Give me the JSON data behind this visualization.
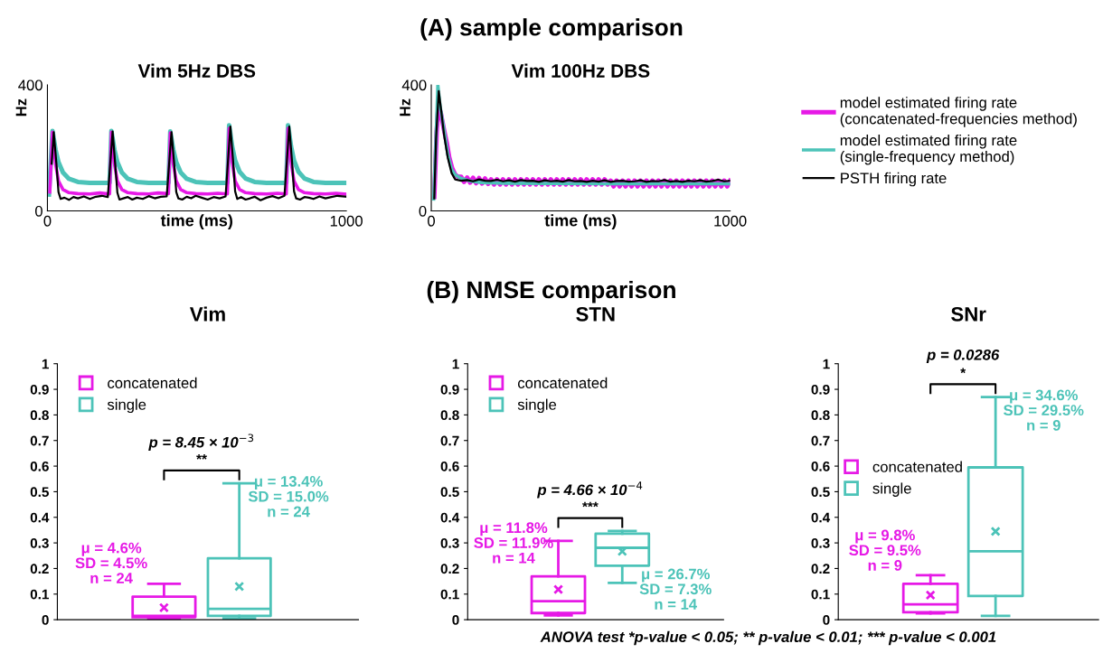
{
  "chart_data": [
    {
      "type": "line",
      "title": "Vim 5Hz DBS",
      "xlabel": "time (ms)",
      "ylabel": "Hz",
      "xlim": [
        0,
        1000
      ],
      "ylim": [
        0,
        400
      ],
      "xticks": [
        0,
        1000
      ],
      "yticks": [
        0,
        400
      ],
      "grid": false,
      "legend": false,
      "annotations": [
        "(A) sample comparison"
      ],
      "series": [
        {
          "color": "#4cc3b8",
          "x": [
            5,
            17,
            27,
            37,
            52,
            72,
            102,
            142,
            208,
            214,
            224,
            234,
            249,
            269,
            299,
            339,
            405,
            411,
            421,
            431,
            446,
            466,
            496,
            536,
            602,
            608,
            618,
            628,
            643,
            663,
            693,
            733,
            799,
            805,
            815,
            825,
            840,
            860,
            890,
            930,
            1000
          ],
          "values": [
            52,
            254,
            195,
            155,
            122,
            102,
            92,
            89,
            89,
            254,
            195,
            155,
            122,
            102,
            92,
            89,
            89,
            252,
            195,
            155,
            122,
            102,
            92,
            89,
            89,
            272,
            205,
            160,
            124,
            103,
            92,
            89,
            89,
            272,
            205,
            160,
            124,
            103,
            92,
            89,
            89
          ]
        },
        {
          "color": "#e619e6",
          "x": [
            8,
            17,
            27,
            37,
            52,
            72,
            102,
            142,
            175,
            208,
            214,
            224,
            234,
            249,
            269,
            299,
            339,
            370,
            405,
            411,
            421,
            431,
            446,
            466,
            496,
            536,
            570,
            602,
            608,
            618,
            628,
            643,
            663,
            693,
            733,
            770,
            799,
            805,
            815,
            825,
            840,
            860,
            890,
            930,
            965,
            1000
          ],
          "values": [
            60,
            250,
            150,
            95,
            68,
            58,
            55,
            54,
            57,
            54,
            250,
            150,
            95,
            68,
            58,
            55,
            54,
            57,
            55,
            248,
            150,
            95,
            68,
            58,
            55,
            54,
            56,
            54,
            262,
            155,
            95,
            68,
            58,
            55,
            54,
            56,
            54,
            262,
            155,
            95,
            68,
            58,
            55,
            54,
            56,
            53
          ]
        },
        {
          "color": "#000000",
          "x": [
            14,
            21,
            30,
            37,
            44,
            57,
            72,
            87,
            102,
            122,
            142,
            162,
            182,
            202,
            218,
            227,
            234,
            241,
            254,
            269,
            284,
            299,
            319,
            339,
            359,
            379,
            399,
            415,
            424,
            431,
            438,
            451,
            466,
            481,
            496,
            516,
            536,
            556,
            576,
            596,
            612,
            621,
            628,
            635,
            648,
            663,
            678,
            693,
            713,
            733,
            753,
            773,
            793,
            809,
            818,
            825,
            832,
            845,
            860,
            875,
            890,
            910,
            930,
            950,
            970,
            1000
          ],
          "values": [
            150,
            250,
            150,
            60,
            38,
            42,
            35,
            44,
            40,
            46,
            38,
            45,
            48,
            44,
            252,
            145,
            58,
            36,
            40,
            44,
            36,
            42,
            38,
            47,
            40,
            45,
            46,
            250,
            150,
            60,
            40,
            36,
            45,
            40,
            48,
            42,
            36,
            44,
            40,
            46,
            268,
            160,
            62,
            38,
            44,
            36,
            40,
            45,
            34,
            42,
            47,
            40,
            48,
            268,
            160,
            62,
            40,
            36,
            44,
            42,
            38,
            46,
            40,
            44,
            48,
            45
          ]
        }
      ]
    },
    {
      "type": "line",
      "title": "Vim 100Hz DBS",
      "xlabel": "time (ms)",
      "ylabel": "Hz",
      "xlim": [
        0,
        1000
      ],
      "ylim": [
        0,
        400
      ],
      "xticks": [
        0,
        1000
      ],
      "yticks": [
        0,
        400
      ],
      "grid": false,
      "legend": "right",
      "series": [
        {
          "name": "model estimated firing rate\n(concatenated-frequencies method)",
          "color": "#e619e6",
          "x": [
            10,
            18,
            24,
            32,
            42,
            52,
            60,
            70,
            80,
            90,
            100,
            110,
            120,
            130,
            140,
            150,
            160,
            170,
            180,
            190,
            200,
            210,
            220,
            230,
            240,
            250,
            260,
            270,
            280,
            290,
            300,
            310,
            320,
            330,
            340,
            350,
            360,
            370,
            380,
            390,
            400,
            410,
            420,
            430,
            440,
            450,
            460,
            470,
            480,
            490,
            500,
            510,
            520,
            530,
            540,
            550,
            560,
            570,
            580,
            590,
            600,
            610,
            620,
            630,
            640,
            650,
            660,
            670,
            680,
            690,
            700,
            710,
            720,
            730,
            740,
            750,
            760,
            770,
            780,
            790,
            800,
            810,
            820,
            830,
            840,
            850,
            860,
            870,
            880,
            890,
            900,
            910,
            920,
            930,
            940,
            950,
            960,
            970,
            980,
            990,
            1000
          ],
          "values": [
            45,
            250,
            335,
            310,
            260,
            215,
            170,
            135,
            115,
            108,
            108,
            92,
            106,
            90,
            105,
            88,
            104,
            87,
            103,
            86,
            100,
            84,
            100,
            84,
            100,
            84,
            100,
            84,
            100,
            84,
            100,
            84,
            100,
            84,
            100,
            84,
            100,
            84,
            100,
            84,
            100,
            84,
            100,
            84,
            100,
            84,
            100,
            84,
            100,
            84,
            100,
            84,
            100,
            84,
            100,
            84,
            100,
            84,
            100,
            84,
            96,
            78,
            96,
            78,
            96,
            78,
            96,
            78,
            96,
            78,
            96,
            78,
            96,
            78,
            96,
            78,
            96,
            78,
            96,
            78,
            96,
            78,
            96,
            78,
            96,
            78,
            96,
            78,
            96,
            78,
            96,
            78,
            96,
            78,
            96,
            78,
            96,
            78,
            96,
            78,
            96
          ]
        },
        {
          "name": "model estimated firing rate\n(single-frequency method)",
          "color": "#4cc3b8",
          "x": [
            8,
            16,
            22,
            30,
            43,
            55,
            68,
            80,
            98,
            130,
            168,
            250,
            400,
            600,
            800,
            1000
          ],
          "values": [
            38,
            236,
            400,
            330,
            255,
            180,
            132,
            115,
            104,
            95,
            90,
            88,
            87,
            86,
            86,
            86
          ]
        },
        {
          "name": "PSTH firing rate",
          "color": "#000000",
          "x": [
            10,
            16,
            25,
            33,
            43,
            55,
            68,
            80,
            100,
            120,
            140,
            160,
            180,
            200,
            220,
            240,
            260,
            280,
            300,
            320,
            340,
            360,
            380,
            400,
            420,
            440,
            460,
            480,
            500,
            520,
            540,
            560,
            580,
            600,
            620,
            640,
            660,
            680,
            700,
            720,
            740,
            760,
            780,
            800,
            820,
            840,
            860,
            880,
            900,
            920,
            940,
            960,
            980,
            1000
          ],
          "values": [
            40,
            230,
            380,
            320,
            240,
            170,
            120,
            100,
            96,
            98,
            94,
            100,
            96,
            95,
            99,
            94,
            97,
            93,
            98,
            95,
            96,
            92,
            97,
            94,
            96,
            93,
            98,
            94,
            95,
            92,
            96,
            93,
            97,
            92,
            95,
            96,
            93,
            94,
            97,
            92,
            95,
            94,
            98,
            93,
            95,
            92,
            96,
            94,
            97,
            93,
            95,
            99,
            94,
            96
          ]
        }
      ]
    },
    {
      "type": "box",
      "title": "Vim",
      "categories": [
        null
      ],
      "ylim": [
        0,
        1
      ],
      "yticks": [
        0,
        0.1,
        0.2,
        0.3,
        0.4,
        0.5,
        0.6,
        0.7,
        0.8,
        0.9,
        1
      ],
      "grid": false,
      "legend": "top left",
      "marker": "cross",
      "annotations": [
        "p = 8.45 × 10$^{−3}$",
        "**",
        "μ = 4.6%\nSD = 4.5%\nn = 24",
        "μ = 13.4%\nSD = 15.0%\nn = 24",
        "(B) NMSE comparison"
      ],
      "series": [
        {
          "name": "concatenated",
          "color": "#e619e6",
          "boxes": [
            {
              "low": 0.005,
              "q1": 0.01,
              "median": 0.015,
              "q3": 0.09,
              "high": 0.14,
              "mean": 0.047
            }
          ]
        },
        {
          "name": "single",
          "color": "#4cc3b8",
          "boxes": [
            {
              "low": 0.005,
              "q1": 0.015,
              "median": 0.042,
              "q3": 0.24,
              "high": 0.533,
              "mean": 0.13
            }
          ]
        }
      ]
    },
    {
      "type": "box",
      "title": "STN",
      "categories": [
        null
      ],
      "ylim": [
        0,
        1
      ],
      "yticks": [
        0,
        0.1,
        0.2,
        0.3,
        0.4,
        0.5,
        0.6,
        0.7,
        0.8,
        0.9,
        1
      ],
      "grid": false,
      "legend": "top left",
      "marker": "cross",
      "annotations": [
        "p = 4.66 × 10$^{−4}$",
        "***",
        "μ = 11.8%\nSD = 11.9%\nn = 14",
        "μ = 26.7%\nSD = 7.3%\nn = 14"
      ],
      "series": [
        {
          "name": "concatenated",
          "color": "#e619e6",
          "boxes": [
            {
              "low": 0.017,
              "q1": 0.026,
              "median": 0.072,
              "q3": 0.169,
              "high": 0.308,
              "mean": 0.118
            }
          ]
        },
        {
          "name": "single",
          "color": "#4cc3b8",
          "boxes": [
            {
              "low": 0.144,
              "q1": 0.211,
              "median": 0.281,
              "q3": 0.336,
              "high": 0.347,
              "mean": 0.267
            }
          ]
        }
      ]
    },
    {
      "type": "box",
      "title": "SNr",
      "categories": [
        null
      ],
      "ylim": [
        0,
        1
      ],
      "yticks": [
        0,
        0.1,
        0.2,
        0.3,
        0.4,
        0.5,
        0.6,
        0.7,
        0.8,
        0.9,
        1
      ],
      "grid": false,
      "legend": "left",
      "marker": "cross",
      "annotations": [
        "p = 0.0286",
        "*",
        "μ = 9.8%\nSD = 9.5%\nn = 9",
        "μ = 34.6%\nSD = 29.5%\nn = 9",
        "ANOVA test *p-value < 0.05; ** p-value < 0.01; *** p-value < 0.001"
      ],
      "series": [
        {
          "name": "concatenated",
          "color": "#e619e6",
          "boxes": [
            {
              "low": 0.025,
              "q1": 0.029,
              "median": 0.06,
              "q3": 0.14,
              "high": 0.174,
              "mean": 0.096
            }
          ]
        },
        {
          "name": "single",
          "color": "#4cc3b8",
          "boxes": [
            {
              "low": 0.015,
              "q1": 0.093,
              "median": 0.267,
              "q3": 0.595,
              "high": 0.87,
              "mean": 0.345
            }
          ]
        }
      ]
    }
  ]
}
